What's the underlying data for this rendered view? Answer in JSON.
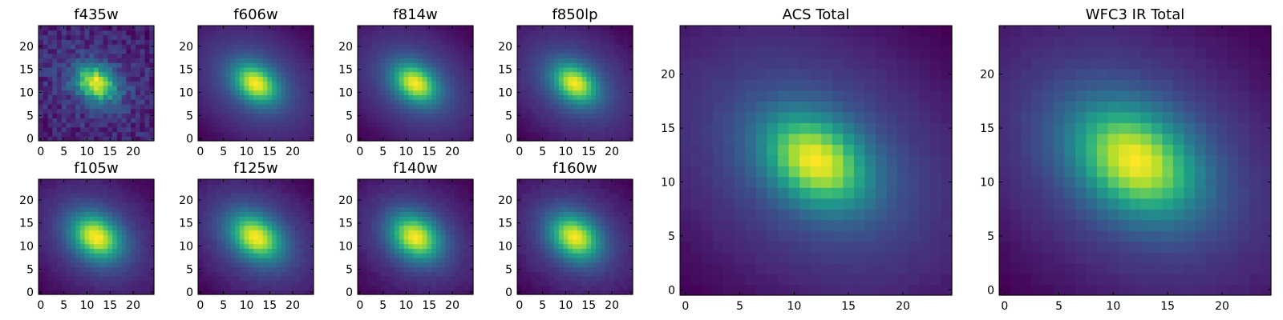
{
  "chart_data": [
    {
      "type": "heatmap",
      "title": "f435w",
      "colormap": "viridis",
      "grid_size": 25,
      "xlim": [
        0,
        24
      ],
      "ylim": [
        0,
        24
      ],
      "xticks": [
        0,
        5,
        10,
        15,
        20
      ],
      "yticks": [
        0,
        5,
        10,
        15,
        20
      ],
      "peak": [
        12,
        12
      ],
      "core_width": 2.6,
      "halo_width": 8.5,
      "halo_weight": 0.15,
      "tilt_deg": -30,
      "elongation": 1.2,
      "noise": 0.22
    },
    {
      "type": "heatmap",
      "title": "f606w",
      "colormap": "viridis",
      "grid_size": 25,
      "xlim": [
        0,
        24
      ],
      "ylim": [
        0,
        24
      ],
      "xticks": [
        0,
        5,
        10,
        15,
        20
      ],
      "yticks": [
        0,
        5,
        10,
        15,
        20
      ],
      "peak": [
        12,
        12
      ],
      "core_width": 2.8,
      "halo_width": 10,
      "halo_weight": 0.45,
      "tilt_deg": -35,
      "elongation": 1.25,
      "noise": 0.02
    },
    {
      "type": "heatmap",
      "title": "f814w",
      "colormap": "viridis",
      "grid_size": 25,
      "xlim": [
        0,
        24
      ],
      "ylim": [
        0,
        24
      ],
      "xticks": [
        0,
        5,
        10,
        15,
        20
      ],
      "yticks": [
        0,
        5,
        10,
        15,
        20
      ],
      "peak": [
        12,
        12
      ],
      "core_width": 2.8,
      "halo_width": 10,
      "halo_weight": 0.45,
      "tilt_deg": -35,
      "elongation": 1.25,
      "noise": 0.02
    },
    {
      "type": "heatmap",
      "title": "f850lp",
      "colormap": "viridis",
      "grid_size": 25,
      "xlim": [
        0,
        24
      ],
      "ylim": [
        0,
        24
      ],
      "xticks": [
        0,
        5,
        10,
        15,
        20
      ],
      "yticks": [
        0,
        5,
        10,
        15,
        20
      ],
      "peak": [
        12,
        12
      ],
      "core_width": 2.8,
      "halo_width": 10,
      "halo_weight": 0.45,
      "tilt_deg": -35,
      "elongation": 1.25,
      "noise": 0.03
    },
    {
      "type": "heatmap",
      "title": "f105w",
      "colormap": "viridis",
      "grid_size": 25,
      "xlim": [
        0,
        24
      ],
      "ylim": [
        0,
        24
      ],
      "xticks": [
        0,
        5,
        10,
        15,
        20
      ],
      "yticks": [
        0,
        5,
        10,
        15,
        20
      ],
      "peak": [
        12,
        12
      ],
      "core_width": 3.2,
      "halo_width": 9.5,
      "halo_weight": 0.4,
      "tilt_deg": -35,
      "elongation": 1.2,
      "noise": 0.04
    },
    {
      "type": "heatmap",
      "title": "f125w",
      "colormap": "viridis",
      "grid_size": 25,
      "xlim": [
        0,
        24
      ],
      "ylim": [
        0,
        24
      ],
      "xticks": [
        0,
        5,
        10,
        15,
        20
      ],
      "yticks": [
        0,
        5,
        10,
        15,
        20
      ],
      "peak": [
        12,
        12
      ],
      "core_width": 3.2,
      "halo_width": 10,
      "halo_weight": 0.45,
      "tilt_deg": -35,
      "elongation": 1.25,
      "noise": 0.04
    },
    {
      "type": "heatmap",
      "title": "f140w",
      "colormap": "viridis",
      "grid_size": 25,
      "xlim": [
        0,
        24
      ],
      "ylim": [
        0,
        24
      ],
      "xticks": [
        0,
        5,
        10,
        15,
        20
      ],
      "yticks": [
        0,
        5,
        10,
        15,
        20
      ],
      "peak": [
        12,
        12
      ],
      "core_width": 3.2,
      "halo_width": 9.5,
      "halo_weight": 0.4,
      "tilt_deg": -35,
      "elongation": 1.2,
      "noise": 0.04
    },
    {
      "type": "heatmap",
      "title": "f160w",
      "colormap": "viridis",
      "grid_size": 25,
      "xlim": [
        0,
        24
      ],
      "ylim": [
        0,
        24
      ],
      "xticks": [
        0,
        5,
        10,
        15,
        20
      ],
      "yticks": [
        0,
        5,
        10,
        15,
        20
      ],
      "peak": [
        12,
        12
      ],
      "core_width": 3.2,
      "halo_width": 9.5,
      "halo_weight": 0.4,
      "tilt_deg": -35,
      "elongation": 1.2,
      "noise": 0.04
    },
    {
      "type": "heatmap",
      "title": "ACS Total",
      "colormap": "viridis",
      "grid_size": 25,
      "xlim": [
        0,
        24
      ],
      "ylim": [
        0,
        24
      ],
      "xticks": [
        0,
        5,
        10,
        15,
        20
      ],
      "yticks": [
        0,
        5,
        10,
        15,
        20
      ],
      "peak": [
        12,
        12
      ],
      "core_width": 2.8,
      "halo_width": 10,
      "halo_weight": 0.45,
      "tilt_deg": -35,
      "elongation": 1.25,
      "noise": 0.02
    },
    {
      "type": "heatmap",
      "title": "WFC3 IR Total",
      "colormap": "viridis",
      "grid_size": 25,
      "xlim": [
        0,
        24
      ],
      "ylim": [
        0,
        24
      ],
      "xticks": [
        0,
        5,
        10,
        15,
        20
      ],
      "yticks": [
        0,
        5,
        10,
        15,
        20
      ],
      "peak": [
        12,
        12
      ],
      "core_width": 3.3,
      "halo_width": 10,
      "halo_weight": 0.45,
      "tilt_deg": -35,
      "elongation": 1.25,
      "noise": 0.02
    }
  ]
}
